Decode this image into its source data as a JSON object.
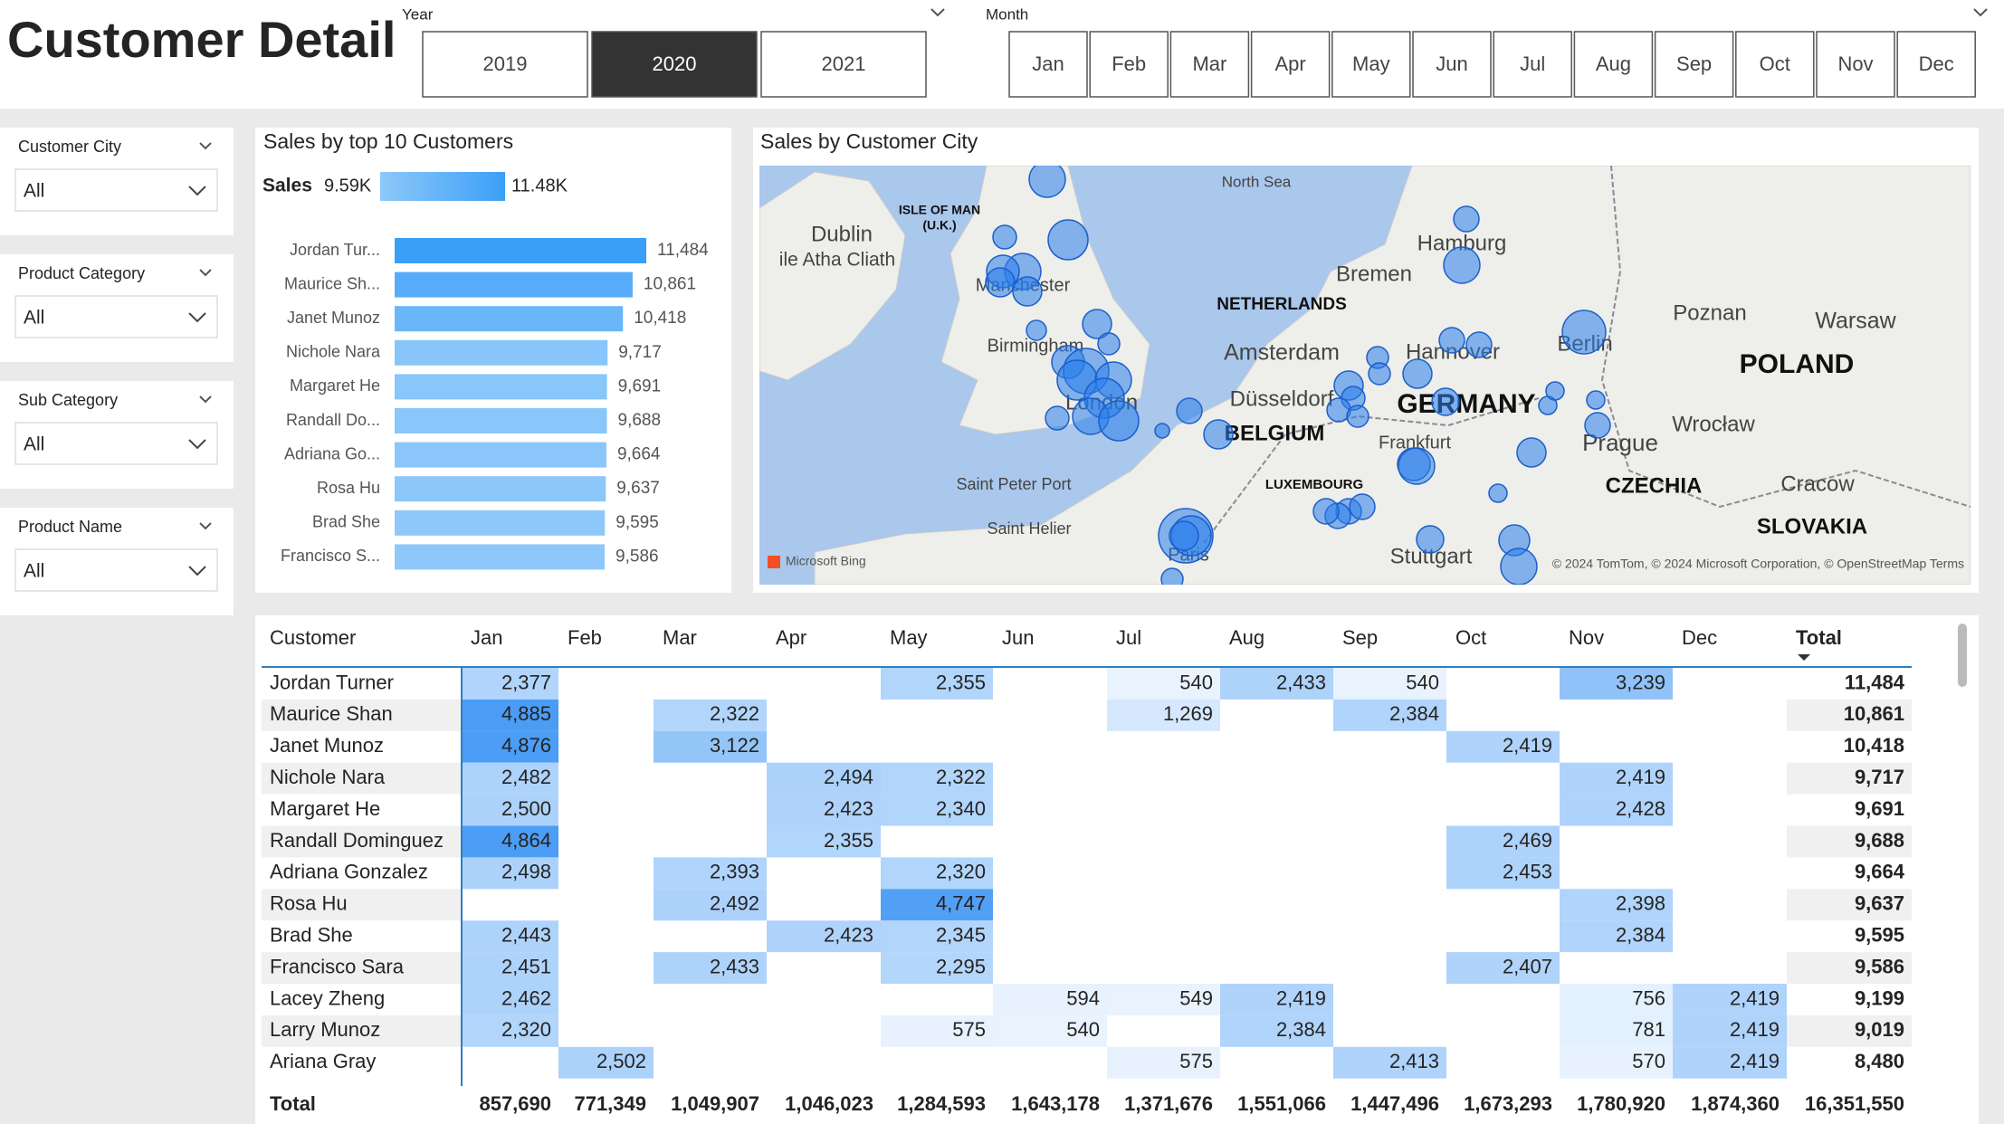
{
  "header": {
    "title": "Customer Detail"
  },
  "year_slicer": {
    "label": "Year",
    "options": [
      "2019",
      "2020",
      "2021"
    ],
    "selected": "2020"
  },
  "month_slicer": {
    "label": "Month",
    "options": [
      "Jan",
      "Feb",
      "Mar",
      "Apr",
      "May",
      "Jun",
      "Jul",
      "Aug",
      "Sep",
      "Oct",
      "Nov",
      "Dec"
    ]
  },
  "filters": [
    {
      "label": "Customer City",
      "value": "All"
    },
    {
      "label": "Product Category",
      "value": "All"
    },
    {
      "label": "Sub Category",
      "value": "All"
    },
    {
      "label": "Product Name",
      "value": "All"
    }
  ],
  "chart_data": {
    "type": "bar",
    "title": "Sales by top 10 Customers",
    "legend_title": "Sales",
    "legend_min_label": "9.59K",
    "legend_max_label": "11.48K",
    "color_min": "#8ec8fa",
    "color_max": "#3a9ff7",
    "categories": [
      "Jordan Tur...",
      "Maurice Sh...",
      "Janet Munoz",
      "Nichole Nara",
      "Margaret He",
      "Randall Do...",
      "Adriana Go...",
      "Rosa Hu",
      "Brad She",
      "Francisco S..."
    ],
    "values": [
      11484,
      10861,
      10418,
      9717,
      9691,
      9688,
      9664,
      9637,
      9595,
      9586
    ],
    "value_labels": [
      "11,484",
      "10,861",
      "10,418",
      "9,717",
      "9,691",
      "9,688",
      "9,664",
      "9,637",
      "9,595",
      "9,586"
    ]
  },
  "map": {
    "title": "Sales by Customer City",
    "places": [
      "North Sea",
      "ISLE OF MAN",
      "(U.K.)",
      "Dublin",
      "ile Atha Cliath",
      "Hamburg",
      "Bremen",
      "NETHERLANDS",
      "Amsterdam",
      "Hannover",
      "Berlin",
      "Poznan",
      "Warsaw",
      "POLAND",
      "Manchester",
      "Birmingham",
      "London",
      "Düsseldorf",
      "GERMANY",
      "BELGIUM",
      "Frankfurt",
      "Prague",
      "Wrocław",
      "Saint Peter Port",
      "LUXEMBOURG",
      "CZECHIA",
      "Cracow",
      "Saint Helier",
      "Stuttgart",
      "SLOVAKIA",
      "Paris"
    ],
    "brand": "Microsoft Bing",
    "attribution": "© 2024 TomTom, © 2024 Microsoft Corporation, © OpenStreetMap Terms"
  },
  "table": {
    "columns": [
      "Customer",
      "Jan",
      "Feb",
      "Mar",
      "Apr",
      "May",
      "Jun",
      "Jul",
      "Aug",
      "Sep",
      "Oct",
      "Nov",
      "Dec",
      "Total"
    ],
    "rows": [
      [
        "Jordan Turner",
        "2,377",
        null,
        null,
        null,
        "2,355",
        null,
        "540",
        "2,433",
        "540",
        null,
        "3,239",
        null,
        "11,484"
      ],
      [
        "Maurice Shan",
        "4,885",
        null,
        "2,322",
        null,
        null,
        null,
        "1,269",
        null,
        "2,384",
        null,
        null,
        null,
        "10,861"
      ],
      [
        "Janet Munoz",
        "4,876",
        null,
        "3,122",
        null,
        null,
        null,
        null,
        null,
        null,
        "2,419",
        null,
        null,
        "10,418"
      ],
      [
        "Nichole Nara",
        "2,482",
        null,
        null,
        "2,494",
        "2,322",
        null,
        null,
        null,
        null,
        null,
        "2,419",
        null,
        "9,717"
      ],
      [
        "Margaret He",
        "2,500",
        null,
        null,
        "2,423",
        "2,340",
        null,
        null,
        null,
        null,
        null,
        "2,428",
        null,
        "9,691"
      ],
      [
        "Randall Dominguez",
        "4,864",
        null,
        null,
        "2,355",
        null,
        null,
        null,
        null,
        null,
        "2,469",
        null,
        null,
        "9,688"
      ],
      [
        "Adriana Gonzalez",
        "2,498",
        null,
        "2,393",
        null,
        "2,320",
        null,
        null,
        null,
        null,
        "2,453",
        null,
        null,
        "9,664"
      ],
      [
        "Rosa Hu",
        null,
        null,
        "2,492",
        null,
        "4,747",
        null,
        null,
        null,
        null,
        null,
        "2,398",
        null,
        "9,637"
      ],
      [
        "Brad She",
        "2,443",
        null,
        null,
        "2,423",
        "2,345",
        null,
        null,
        null,
        null,
        null,
        "2,384",
        null,
        "9,595"
      ],
      [
        "Francisco Sara",
        "2,451",
        null,
        "2,433",
        null,
        "2,295",
        null,
        null,
        null,
        null,
        "2,407",
        null,
        null,
        "9,586"
      ],
      [
        "Lacey Zheng",
        "2,462",
        null,
        null,
        null,
        null,
        "594",
        "549",
        "2,419",
        null,
        null,
        "756",
        "2,419",
        "9,199"
      ],
      [
        "Larry Munoz",
        "2,320",
        null,
        null,
        null,
        "575",
        "540",
        null,
        "2,384",
        null,
        null,
        "781",
        "2,419",
        "9,019"
      ],
      [
        "Ariana Gray",
        null,
        "2,502",
        null,
        null,
        null,
        null,
        "575",
        null,
        "2,413",
        null,
        "570",
        "2,419",
        "8,480"
      ]
    ],
    "total": [
      "Total",
      "857,690",
      "771,349",
      "1,049,907",
      "1,046,023",
      "1,284,593",
      "1,643,178",
      "1,371,676",
      "1,551,066",
      "1,447,496",
      "1,673,293",
      "1,780,920",
      "1,874,360",
      "16,351,550"
    ]
  }
}
